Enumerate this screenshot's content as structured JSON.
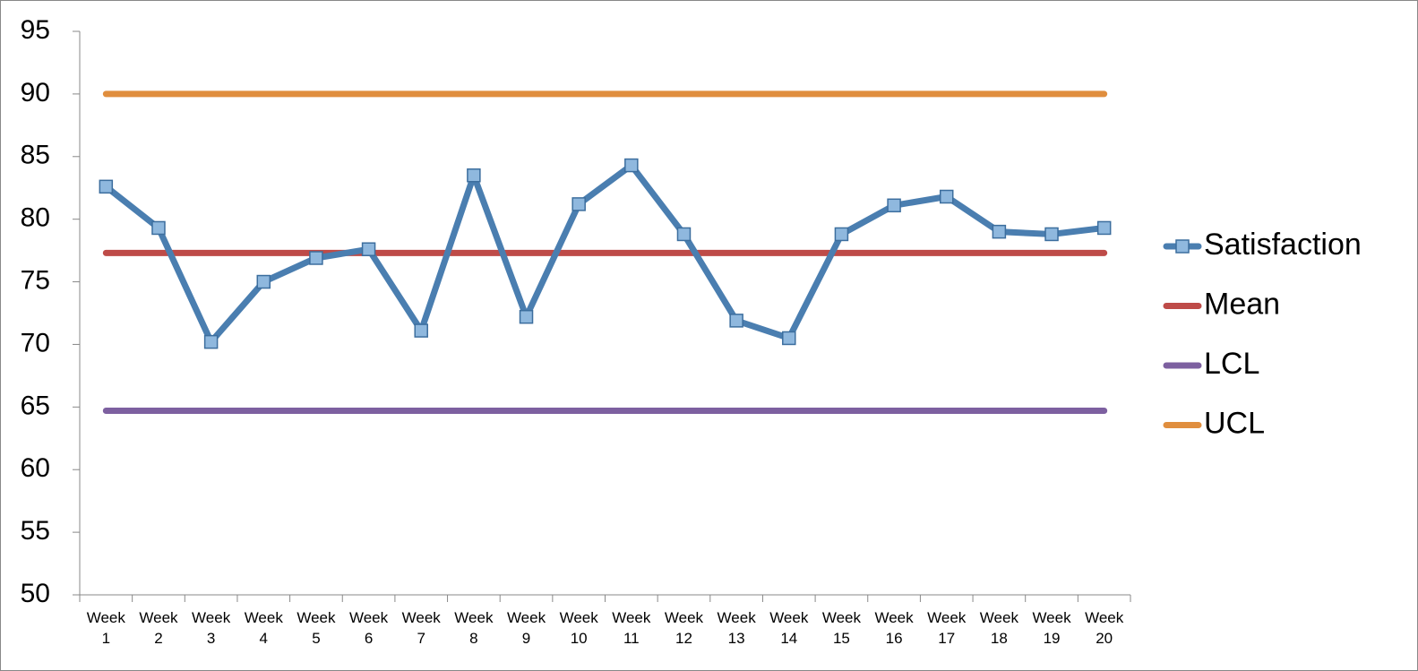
{
  "chart_data": {
    "type": "line",
    "categories": [
      "Week 1",
      "Week 2",
      "Week 3",
      "Week 4",
      "Week 5",
      "Week 6",
      "Week 7",
      "Week 8",
      "Week 9",
      "Week 10",
      "Week 11",
      "Week 12",
      "Week 13",
      "Week 14",
      "Week 15",
      "Week 16",
      "Week 17",
      "Week 18",
      "Week 19",
      "Week 20"
    ],
    "series": [
      {
        "name": "Satisfaction",
        "color": "#4a7eb0",
        "marker": true,
        "values": [
          82.6,
          79.3,
          70.2,
          75.0,
          76.9,
          77.6,
          71.1,
          83.5,
          72.2,
          81.2,
          84.3,
          78.8,
          71.9,
          70.5,
          78.8,
          81.1,
          81.8,
          79.0,
          78.8,
          79.3
        ]
      },
      {
        "name": "Mean",
        "color": "#be4b48",
        "marker": false,
        "values": [
          77.3,
          77.3,
          77.3,
          77.3,
          77.3,
          77.3,
          77.3,
          77.3,
          77.3,
          77.3,
          77.3,
          77.3,
          77.3,
          77.3,
          77.3,
          77.3,
          77.3,
          77.3,
          77.3,
          77.3
        ]
      },
      {
        "name": "LCL",
        "color": "#7d60a0",
        "marker": false,
        "values": [
          64.7,
          64.7,
          64.7,
          64.7,
          64.7,
          64.7,
          64.7,
          64.7,
          64.7,
          64.7,
          64.7,
          64.7,
          64.7,
          64.7,
          64.7,
          64.7,
          64.7,
          64.7,
          64.7,
          64.7
        ]
      },
      {
        "name": "UCL",
        "color": "#e08e3e",
        "marker": false,
        "values": [
          90.0,
          90.0,
          90.0,
          90.0,
          90.0,
          90.0,
          90.0,
          90.0,
          90.0,
          90.0,
          90.0,
          90.0,
          90.0,
          90.0,
          90.0,
          90.0,
          90.0,
          90.0,
          90.0,
          90.0
        ]
      }
    ],
    "ylim": [
      50,
      95
    ],
    "yticks": [
      50,
      55,
      60,
      65,
      70,
      75,
      80,
      85,
      90,
      95
    ],
    "grid": false,
    "legend": "right"
  }
}
